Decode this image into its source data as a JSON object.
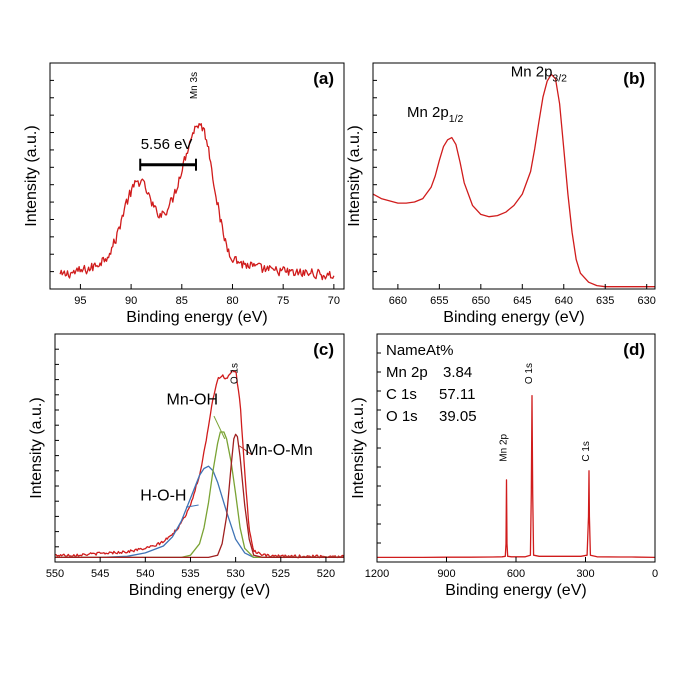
{
  "colors": {
    "spectrum": "#d01c1c",
    "mn_oh": "#7aa334",
    "h_o_h": "#3f73b5",
    "mn_o_mn": "#b5342a",
    "dark_red": "#a02020"
  },
  "chart_data": [
    {
      "id": "a",
      "type": "line",
      "panel_label": "(a)",
      "xlabel": "Binding energy (eV)",
      "ylabel": "Intensity (a.u.)",
      "xlim": [
        98,
        69
      ],
      "ylim": [
        0,
        100
      ],
      "x_ticks": [
        95,
        90,
        85,
        80,
        75,
        70
      ],
      "y_tick_count": 12,
      "y_tick_labels": false,
      "annotations": [
        {
          "text": "Mn 3s",
          "x": 83.5,
          "y": 84,
          "rotate": true,
          "size": 10
        },
        {
          "text": "5.56 eV",
          "x": 86.5,
          "y": 62,
          "size": 15
        }
      ],
      "bracket": {
        "x1": 89.1,
        "x2": 83.6,
        "y": 55
      },
      "series": [
        {
          "color_key": "spectrum",
          "noise": 2.2,
          "x": [
            97,
            96,
            95,
            94,
            93,
            92.5,
            92,
            91.5,
            91,
            90.5,
            90,
            89.5,
            89,
            88.5,
            88,
            87.5,
            87,
            86.5,
            86,
            85.5,
            85,
            84.5,
            84,
            83.5,
            83,
            82.5,
            82,
            81.5,
            81,
            80.5,
            80,
            79,
            78,
            77,
            76,
            75,
            74,
            73,
            72,
            71,
            70
          ],
          "y": [
            6,
            7,
            8,
            9,
            12,
            14,
            17,
            22,
            30,
            38,
            43,
            47,
            48,
            44,
            38,
            34,
            33,
            35,
            39,
            45,
            53,
            61,
            68,
            73,
            72,
            66,
            52,
            38,
            26,
            18,
            14,
            11,
            10,
            9,
            8,
            8,
            7,
            7,
            7,
            6,
            6
          ]
        }
      ]
    },
    {
      "id": "b",
      "type": "line",
      "panel_label": "(b)",
      "xlabel": "Binding energy (eV)",
      "ylabel": "Intensity (a.u.)",
      "xlim": [
        663,
        629
      ],
      "ylim": [
        0,
        100
      ],
      "x_ticks": [
        660,
        655,
        650,
        645,
        640,
        635,
        630
      ],
      "y_tick_count": 12,
      "y_tick_labels": false,
      "annotations": [
        {
          "text": "Mn 2p",
          "sub": "1/2",
          "x": 655.5,
          "y": 76,
          "size": 15
        },
        {
          "text": "Mn 2p",
          "sub": "3/2",
          "x": 643,
          "y": 94,
          "size": 15
        }
      ],
      "series": [
        {
          "color_key": "spectrum",
          "noise": 0,
          "x": [
            663,
            662,
            661,
            660,
            659,
            658,
            657,
            656,
            655.5,
            655,
            654.5,
            654,
            653.5,
            653,
            652.5,
            652,
            651,
            650,
            649,
            648,
            647,
            646,
            645,
            644,
            643.5,
            643,
            642.5,
            642,
            641.5,
            641,
            640.5,
            640,
            639.5,
            639,
            638.5,
            638,
            637,
            636,
            635,
            634,
            633,
            632,
            631,
            630,
            629
          ],
          "y": [
            42,
            40,
            39,
            38,
            38,
            38.5,
            40,
            45,
            50,
            57,
            63,
            66,
            67,
            64,
            56,
            47,
            37,
            33,
            32,
            32.5,
            34,
            37,
            42,
            52,
            62,
            74,
            85,
            92,
            95,
            93,
            82,
            62,
            42,
            25,
            13,
            7,
            3,
            1.5,
            1,
            1,
            1,
            1,
            1,
            1,
            1
          ]
        }
      ]
    },
    {
      "id": "c",
      "type": "line",
      "panel_label": "(c)",
      "xlabel": "Binding energy (eV)",
      "ylabel": "Intensity (a.u.)",
      "xlim": [
        550,
        518
      ],
      "ylim": [
        0,
        100
      ],
      "x_ticks": [
        550,
        545,
        540,
        535,
        530,
        525,
        520
      ],
      "y_tick_count": 14,
      "y_tick_labels": false,
      "annotations": [
        {
          "text": "O 1s",
          "x": 529.8,
          "y": 78,
          "rotate": true,
          "size": 10
        },
        {
          "text": "Mn-OH",
          "x": 534.8,
          "y": 69,
          "size": 16,
          "color_key": "mn_oh"
        },
        {
          "text": "Mn-O-Mn",
          "x": 525.2,
          "y": 47,
          "size": 16,
          "color_key": "mn_o_mn"
        },
        {
          "text": "H-O-H",
          "x": 538,
          "y": 27,
          "size": 16,
          "color_key": "h_o_h"
        }
      ],
      "leaders": [
        {
          "x1": 532.4,
          "y1": 64,
          "x2": 531.2,
          "y2": 54,
          "color_key": "mn_oh"
        },
        {
          "x1": 528.2,
          "y1": 47,
          "x2": 529.6,
          "y2": 51,
          "color_key": "mn_o_mn"
        },
        {
          "x1": 535.5,
          "y1": 24,
          "x2": 534.1,
          "y2": 25,
          "color_key": "h_o_h"
        }
      ],
      "series": [
        {
          "color_key": "spectrum",
          "noise": 0.6,
          "x": [
            550,
            548,
            546,
            544,
            542,
            540,
            539,
            538,
            537,
            536,
            535,
            534,
            533.5,
            533,
            532.5,
            532,
            531.5,
            531,
            530.5,
            530,
            529.5,
            529,
            528.5,
            528,
            527,
            526,
            524,
            522,
            520,
            518
          ],
          "y": [
            3,
            3,
            3.5,
            4,
            4.5,
            6,
            7,
            9,
            12,
            17,
            25,
            38,
            48,
            60,
            72,
            80,
            82,
            80,
            83,
            84,
            70,
            40,
            14,
            5,
            3,
            2.5,
            2.5,
            2.5,
            2.5,
            2.5
          ]
        },
        {
          "color_key": "h_o_h",
          "noise": 0,
          "x": [
            550,
            545,
            542,
            540,
            538,
            537,
            536,
            535,
            534,
            533.5,
            533,
            532.5,
            532,
            531,
            530,
            529,
            528,
            526,
            524,
            518
          ],
          "y": [
            2,
            2,
            2.5,
            4,
            7,
            11,
            18,
            28,
            38,
            41,
            42,
            40,
            35,
            22,
            10,
            4,
            2,
            2,
            2,
            2
          ]
        },
        {
          "color_key": "mn_oh",
          "noise": 0,
          "x": [
            550,
            540,
            536,
            535,
            534,
            533.5,
            533,
            532.5,
            532,
            531.7,
            531.3,
            531,
            530.5,
            530,
            529.5,
            529,
            528,
            526,
            518
          ],
          "y": [
            2,
            2,
            2,
            3,
            8,
            15,
            26,
            40,
            52,
            57,
            57,
            54,
            44,
            30,
            15,
            6,
            2,
            2,
            2
          ]
        },
        {
          "color_key": "dark_red",
          "noise": 0,
          "x": [
            550,
            533,
            532,
            531.5,
            531,
            530.5,
            530.2,
            530,
            529.8,
            529.5,
            529,
            528.5,
            528,
            527,
            518
          ],
          "y": [
            2,
            2,
            3,
            8,
            20,
            42,
            54,
            56,
            55,
            46,
            25,
            10,
            3,
            2,
            2
          ]
        }
      ]
    },
    {
      "id": "d",
      "type": "line",
      "panel_label": "(d)",
      "xlabel": "Binding energy (eV)",
      "ylabel": "Intensity (a.u.)",
      "xlim": [
        1200,
        0
      ],
      "ylim": [
        0,
        100
      ],
      "x_ticks": [
        1200,
        900,
        600,
        300,
        0
      ],
      "y_tick_count": 11,
      "y_tick_labels": false,
      "table": [
        {
          "name": "NameAt%",
          "value": ""
        },
        {
          "name": "Mn 2p",
          "value": "3.84"
        },
        {
          "name": "C 1s",
          "value": "57.11"
        },
        {
          "name": "O 1s",
          "value": "39.05"
        }
      ],
      "annotations": [
        {
          "text": "Mn 2p",
          "x": 640,
          "y": 44,
          "rotate": true,
          "size": 10
        },
        {
          "text": "O 1s",
          "x": 530,
          "y": 78,
          "rotate": true,
          "size": 10
        },
        {
          "text": "C 1s",
          "x": 285,
          "y": 44,
          "rotate": true,
          "size": 10
        }
      ],
      "series": [
        {
          "color_key": "spectrum",
          "noise": 0,
          "x": [
            1200,
            1100,
            1000,
            900,
            800,
            700,
            660,
            646,
            643,
            641,
            639,
            636,
            620,
            560,
            538,
            534,
            531,
            528,
            524,
            500,
            400,
            320,
            293,
            287,
            285,
            283,
            279,
            250,
            150,
            100,
            0
          ],
          "y": [
            2,
            2,
            2,
            2.1,
            2.1,
            2.2,
            2.3,
            2.5,
            8,
            36,
            8,
            2.5,
            2.3,
            2.3,
            3,
            30,
            73,
            30,
            3,
            2.5,
            2.5,
            2.5,
            3,
            20,
            40,
            20,
            3,
            2.3,
            2.2,
            2.2,
            2
          ]
        }
      ]
    }
  ]
}
